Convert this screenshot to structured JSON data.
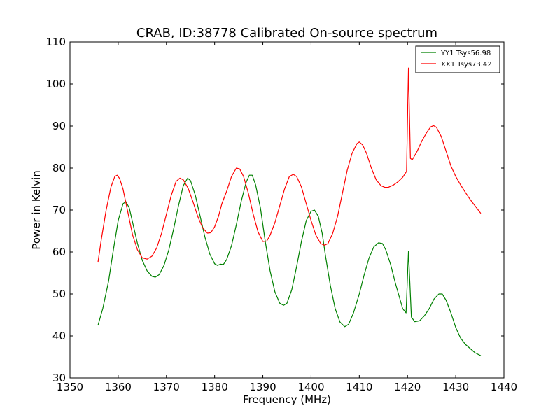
{
  "chart_data": {
    "type": "line",
    "title": "CRAB, ID:38778 Calibrated On-source spectrum",
    "xlabel": "Frequency (MHz)",
    "ylabel": "Power in Kelvin",
    "xlim": [
      1350,
      1440
    ],
    "ylim": [
      30,
      110
    ],
    "xticks": [
      1350,
      1360,
      1370,
      1380,
      1390,
      1400,
      1410,
      1420,
      1430,
      1440
    ],
    "yticks": [
      30,
      40,
      50,
      60,
      70,
      80,
      90,
      100,
      110
    ],
    "grid": false,
    "legend_position": "top-right",
    "series": [
      {
        "name": "YY1 Tsys56.98",
        "color": "#008000",
        "points": [
          [
            1355.8,
            42.5
          ],
          [
            1356.8,
            46.5
          ],
          [
            1358.0,
            53.0
          ],
          [
            1359.0,
            60.5
          ],
          [
            1360.0,
            67.5
          ],
          [
            1361.0,
            71.5
          ],
          [
            1361.6,
            72.0
          ],
          [
            1362.3,
            70.5
          ],
          [
            1363.0,
            67.0
          ],
          [
            1364.0,
            62.0
          ],
          [
            1365.0,
            58.0
          ],
          [
            1366.0,
            55.5
          ],
          [
            1367.0,
            54.2
          ],
          [
            1367.7,
            54.0
          ],
          [
            1368.5,
            54.6
          ],
          [
            1369.5,
            56.8
          ],
          [
            1370.5,
            60.5
          ],
          [
            1371.5,
            65.5
          ],
          [
            1372.5,
            71.0
          ],
          [
            1373.5,
            75.8
          ],
          [
            1374.4,
            77.6
          ],
          [
            1375.0,
            77.0
          ],
          [
            1376.0,
            73.5
          ],
          [
            1377.0,
            68.5
          ],
          [
            1378.0,
            63.5
          ],
          [
            1379.0,
            59.5
          ],
          [
            1380.0,
            57.2
          ],
          [
            1380.6,
            56.8
          ],
          [
            1381.2,
            57.1
          ],
          [
            1381.8,
            57.0
          ],
          [
            1382.5,
            58.2
          ],
          [
            1383.5,
            61.5
          ],
          [
            1384.5,
            66.5
          ],
          [
            1385.5,
            72.0
          ],
          [
            1386.5,
            76.5
          ],
          [
            1387.2,
            78.3
          ],
          [
            1387.8,
            78.3
          ],
          [
            1388.5,
            76.0
          ],
          [
            1389.5,
            70.5
          ],
          [
            1390.5,
            62.5
          ],
          [
            1391.5,
            55.5
          ],
          [
            1392.5,
            50.5
          ],
          [
            1393.5,
            47.8
          ],
          [
            1394.3,
            47.3
          ],
          [
            1395.0,
            47.8
          ],
          [
            1396.0,
            51.0
          ],
          [
            1397.0,
            56.5
          ],
          [
            1398.0,
            62.5
          ],
          [
            1399.0,
            67.5
          ],
          [
            1400.0,
            69.7
          ],
          [
            1400.7,
            70.0
          ],
          [
            1401.5,
            68.5
          ],
          [
            1402.3,
            64.5
          ],
          [
            1403.0,
            59.0
          ],
          [
            1404.0,
            52.0
          ],
          [
            1405.0,
            46.5
          ],
          [
            1406.0,
            43.3
          ],
          [
            1407.0,
            42.2
          ],
          [
            1407.8,
            42.8
          ],
          [
            1408.8,
            45.5
          ],
          [
            1410.0,
            50.0
          ],
          [
            1411.0,
            54.5
          ],
          [
            1412.0,
            58.5
          ],
          [
            1413.0,
            61.2
          ],
          [
            1414.0,
            62.2
          ],
          [
            1414.8,
            62.0
          ],
          [
            1415.5,
            60.5
          ],
          [
            1416.5,
            57.0
          ],
          [
            1417.5,
            52.5
          ],
          [
            1418.5,
            48.5
          ],
          [
            1419.0,
            46.5
          ],
          [
            1419.7,
            45.5
          ],
          [
            1420.2,
            60.2
          ],
          [
            1420.8,
            44.5
          ],
          [
            1421.5,
            43.4
          ],
          [
            1422.5,
            43.6
          ],
          [
            1423.5,
            44.8
          ],
          [
            1424.5,
            46.5
          ],
          [
            1425.5,
            48.8
          ],
          [
            1426.5,
            50.0
          ],
          [
            1427.2,
            50.0
          ],
          [
            1428.0,
            48.5
          ],
          [
            1429.0,
            45.5
          ],
          [
            1430.0,
            42.0
          ],
          [
            1431.0,
            39.5
          ],
          [
            1432.0,
            38.0
          ],
          [
            1433.0,
            37.0
          ],
          [
            1434.0,
            36.0
          ],
          [
            1435.2,
            35.3
          ]
        ]
      },
      {
        "name": "XX1 Tsys73.42",
        "color": "#ff0000",
        "points": [
          [
            1355.8,
            57.5
          ],
          [
            1356.5,
            63.0
          ],
          [
            1357.5,
            70.0
          ],
          [
            1358.5,
            75.5
          ],
          [
            1359.3,
            78.0
          ],
          [
            1359.8,
            78.3
          ],
          [
            1360.3,
            77.5
          ],
          [
            1361.0,
            75.0
          ],
          [
            1362.0,
            69.5
          ],
          [
            1363.0,
            64.0
          ],
          [
            1364.0,
            60.5
          ],
          [
            1365.0,
            58.6
          ],
          [
            1366.0,
            58.3
          ],
          [
            1367.0,
            59.0
          ],
          [
            1368.0,
            61.0
          ],
          [
            1369.0,
            64.5
          ],
          [
            1370.0,
            69.0
          ],
          [
            1371.0,
            73.5
          ],
          [
            1372.0,
            76.8
          ],
          [
            1372.8,
            77.6
          ],
          [
            1373.5,
            77.2
          ],
          [
            1374.5,
            75.2
          ],
          [
            1375.5,
            72.0
          ],
          [
            1376.5,
            68.5
          ],
          [
            1377.5,
            65.8
          ],
          [
            1378.5,
            64.5
          ],
          [
            1379.2,
            64.6
          ],
          [
            1380.0,
            66.0
          ],
          [
            1380.8,
            68.5
          ],
          [
            1381.5,
            71.5
          ],
          [
            1382.5,
            74.5
          ],
          [
            1383.5,
            78.0
          ],
          [
            1384.5,
            80.0
          ],
          [
            1385.2,
            79.8
          ],
          [
            1386.0,
            78.0
          ],
          [
            1387.0,
            74.0
          ],
          [
            1388.0,
            69.0
          ],
          [
            1389.0,
            64.8
          ],
          [
            1390.0,
            62.5
          ],
          [
            1390.8,
            62.6
          ],
          [
            1391.5,
            64.0
          ],
          [
            1392.5,
            67.0
          ],
          [
            1393.5,
            71.0
          ],
          [
            1394.5,
            75.0
          ],
          [
            1395.5,
            78.0
          ],
          [
            1396.3,
            78.5
          ],
          [
            1397.0,
            78.0
          ],
          [
            1398.0,
            75.5
          ],
          [
            1399.0,
            71.5
          ],
          [
            1400.0,
            67.5
          ],
          [
            1401.0,
            64.0
          ],
          [
            1402.0,
            62.0
          ],
          [
            1402.8,
            61.6
          ],
          [
            1403.5,
            62.0
          ],
          [
            1404.5,
            64.5
          ],
          [
            1405.5,
            68.5
          ],
          [
            1406.5,
            74.0
          ],
          [
            1407.5,
            79.5
          ],
          [
            1408.5,
            83.5
          ],
          [
            1409.5,
            85.8
          ],
          [
            1410.0,
            86.2
          ],
          [
            1410.7,
            85.5
          ],
          [
            1411.5,
            83.5
          ],
          [
            1412.5,
            80.0
          ],
          [
            1413.5,
            77.2
          ],
          [
            1414.5,
            75.8
          ],
          [
            1415.3,
            75.4
          ],
          [
            1416.0,
            75.4
          ],
          [
            1417.0,
            75.9
          ],
          [
            1418.0,
            76.7
          ],
          [
            1419.0,
            77.8
          ],
          [
            1419.8,
            79.2
          ],
          [
            1420.2,
            103.8
          ],
          [
            1420.6,
            82.3
          ],
          [
            1421.0,
            82.0
          ],
          [
            1422.0,
            84.0
          ],
          [
            1423.0,
            86.5
          ],
          [
            1424.0,
            88.5
          ],
          [
            1424.8,
            89.8
          ],
          [
            1425.4,
            90.1
          ],
          [
            1426.0,
            89.7
          ],
          [
            1427.0,
            87.5
          ],
          [
            1428.0,
            84.0
          ],
          [
            1429.0,
            80.5
          ],
          [
            1430.0,
            78.0
          ],
          [
            1431.0,
            76.0
          ],
          [
            1432.0,
            74.2
          ],
          [
            1433.0,
            72.5
          ],
          [
            1434.0,
            71.0
          ],
          [
            1435.2,
            69.2
          ]
        ]
      }
    ]
  }
}
